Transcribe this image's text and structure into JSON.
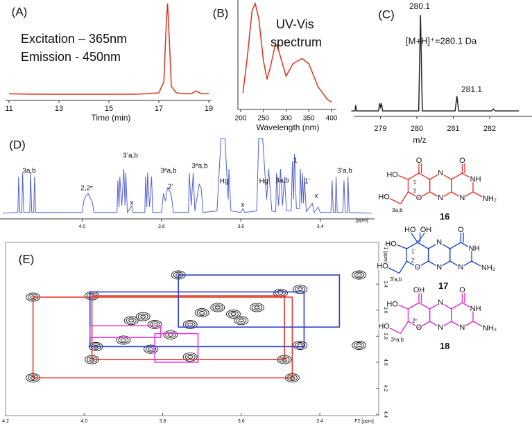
{
  "chart_data": [
    {
      "type": "line",
      "panel_label": "(A)",
      "annotations": [
        "Excitation – 365nm",
        "Emission  - 450nm"
      ],
      "xlabel": "Time (min)",
      "color": "#e0301e",
      "x": [
        11,
        12,
        13,
        14,
        15,
        16,
        16.5,
        17,
        17.2,
        17.3,
        17.35,
        17.42,
        17.5,
        17.7,
        18,
        18.3,
        18.5,
        18.7,
        19
      ],
      "values": [
        2,
        1.5,
        1.5,
        1.5,
        1.5,
        1.5,
        2,
        3,
        15,
        80,
        100,
        60,
        10,
        3,
        2,
        2,
        5,
        2,
        2
      ],
      "xlim": [
        11,
        19
      ],
      "ylim": [
        0,
        100
      ],
      "xticks": [
        11,
        13,
        15,
        17,
        19
      ]
    },
    {
      "type": "line",
      "panel_label": "(B)",
      "annotations": [
        "UV-Vis",
        "spectrum"
      ],
      "xlabel": "Wavelength (nm)",
      "color": "#e0301e",
      "x": [
        205,
        215,
        225,
        232,
        240,
        250,
        258,
        265,
        275,
        280,
        288,
        300,
        315,
        335,
        350,
        370,
        390,
        400
      ],
      "values": [
        14,
        50,
        93,
        100,
        85,
        45,
        27,
        38,
        58,
        60,
        48,
        30,
        42,
        47,
        42,
        20,
        8,
        5
      ],
      "xlim": [
        200,
        400
      ],
      "ylim": [
        0,
        100
      ],
      "xticks": [
        200,
        250,
        300,
        350,
        400
      ]
    },
    {
      "type": "line",
      "panel_label": "(C)",
      "annotations": [
        "[M+H]⁺=280.1 Da"
      ],
      "peak_labels": [
        "280.1",
        "281.1"
      ],
      "xlabel": "m/z",
      "color": "#222222",
      "x": [
        278.2,
        278.3,
        278.32,
        278.34,
        278.95,
        278.98,
        279.0,
        279.03,
        279.06,
        280.05,
        280.1,
        280.15,
        281.05,
        281.1,
        281.15,
        282.05,
        282.1,
        282.15,
        282.8
      ],
      "values": [
        2,
        2,
        8,
        2,
        2,
        10,
        6,
        9,
        2,
        2,
        100,
        2,
        2,
        17,
        2,
        2,
        4,
        2,
        2
      ],
      "xlim": [
        278.2,
        282.8
      ],
      "ylim": [
        0,
        100
      ],
      "xticks": [
        279,
        280,
        281,
        282
      ]
    },
    {
      "type": "line",
      "panel_label": "(D)",
      "xlabel": "[ppm]",
      "color": "#5060d0",
      "annotations": [
        "3a,b",
        "2,2ᵉ",
        "3’a,b",
        "x",
        "3ᵉa,b",
        "2’",
        "3ᵉa,b",
        "Hg",
        "x",
        "Hg",
        "3a,b",
        "1",
        "1’",
        "x",
        "3’a,b"
      ],
      "x": [
        4.2,
        4.162,
        4.16,
        4.157,
        4.152,
        4.15,
        4.147,
        4.132,
        4.13,
        4.127,
        4.122,
        4.12,
        4.117,
        4.0,
        3.995,
        3.99,
        3.985,
        3.98,
        3.975,
        3.97,
        3.912,
        3.91,
        3.907,
        3.905,
        3.9,
        3.895,
        3.892,
        3.89,
        3.886,
        3.875,
        3.872,
        3.842,
        3.84,
        3.837,
        3.835,
        3.83,
        3.825,
        3.822,
        3.8,
        3.795,
        3.79,
        3.785,
        3.78,
        3.775,
        3.77,
        3.732,
        3.73,
        3.725,
        3.72,
        3.716,
        3.705,
        3.7,
        3.695,
        3.66,
        3.65,
        3.64,
        3.632,
        3.63,
        3.625,
        3.6,
        3.595,
        3.59,
        3.56,
        3.555,
        3.545,
        3.535,
        3.53,
        3.522,
        3.512,
        3.51,
        3.505,
        3.5,
        3.495,
        3.49,
        3.485,
        3.473,
        3.47,
        3.467,
        3.465,
        3.46,
        3.452,
        3.45,
        3.447,
        3.445,
        3.442,
        3.44,
        3.435,
        3.42,
        3.415,
        3.405,
        3.4,
        3.373,
        3.37,
        3.367,
        3.362,
        3.36,
        3.357,
        3.343,
        3.34,
        3.337,
        3.332,
        3.33,
        3.327,
        3.27
      ],
      "values": [
        2,
        3,
        50,
        3,
        3,
        55,
        3,
        3,
        55,
        3,
        3,
        50,
        3,
        3,
        20,
        25,
        28,
        22,
        18,
        3,
        3,
        45,
        10,
        50,
        12,
        60,
        12,
        55,
        3,
        12,
        3,
        3,
        50,
        10,
        55,
        10,
        50,
        3,
        3,
        28,
        18,
        35,
        32,
        25,
        3,
        3,
        55,
        12,
        55,
        5,
        40,
        35,
        3,
        5,
        100,
        100,
        20,
        60,
        5,
        3,
        8,
        3,
        5,
        100,
        100,
        20,
        60,
        5,
        4,
        55,
        12,
        60,
        12,
        50,
        5,
        5,
        70,
        20,
        80,
        8,
        8,
        60,
        15,
        55,
        15,
        50,
        4,
        15,
        3,
        10,
        3,
        3,
        45,
        3,
        3,
        50,
        3,
        3,
        45,
        3,
        3,
        50,
        3,
        2
      ],
      "xlim": [
        4.2,
        3.27
      ],
      "ylim": [
        0,
        100
      ],
      "xticks": [
        {
          "value": 4,
          "label": "4.0"
        },
        3.8,
        3.6,
        3.4
      ]
    },
    {
      "type": "contour",
      "panel_label": "(E)",
      "xlabel": "F2 [ppm]",
      "ylabel": "F1 [ppm]",
      "color": "#111111",
      "x": [
        4.13,
        4.13,
        3.98,
        3.98,
        3.97,
        3.9,
        3.88,
        3.83,
        3.82,
        3.78,
        3.76,
        3.73,
        3.73,
        3.66,
        3.62,
        3.56,
        3.6,
        3.5,
        3.49,
        3.47,
        3.45,
        3.45,
        3.3,
        3.3,
        3.85,
        3.7
      ],
      "values": [
        3.5,
        4.12,
        3.49,
        3.98,
        3.88,
        3.83,
        3.68,
        3.9,
        3.71,
        3.79,
        3.33,
        3.71,
        3.96,
        3.58,
        3.63,
        3.58,
        3.68,
        3.47,
        3.98,
        4.12,
        3.44,
        3.87,
        3.33,
        3.87,
        3.65,
        3.62
      ],
      "rectangles": [
        {
          "color": "#e03a2a",
          "x": [
            4.13,
            3.47
          ],
          "y": [
            3.5,
            4.12
          ]
        },
        {
          "color": "#e03a2a",
          "x": [
            3.98,
            3.49
          ],
          "y": [
            3.49,
            3.98
          ]
        },
        {
          "color": "#2a3fd0",
          "x": [
            3.76,
            3.35
          ],
          "y": [
            3.33,
            3.73
          ]
        },
        {
          "color": "#2a3fd0",
          "x": [
            3.985,
            3.44
          ],
          "y": [
            3.46,
            3.88
          ]
        },
        {
          "color": "#e040e0",
          "x": [
            3.985,
            3.805
          ],
          "y": [
            3.72,
            3.81
          ]
        },
        {
          "color": "#e040e0",
          "x": [
            3.82,
            3.71
          ],
          "y": [
            3.78,
            4.0
          ]
        }
      ],
      "xlim": [
        4.2,
        3.25
      ],
      "ylim": [
        3.08,
        4.41
      ],
      "xticks": [
        4.2,
        {
          "value": 4,
          "label": "4.0"
        },
        3.8,
        3.6,
        3.4
      ],
      "yticks": [
        3.4,
        3.6,
        3.8,
        {
          "value": 4,
          "label": "4.0"
        },
        4.2,
        4.4
      ]
    }
  ],
  "structures": [
    {
      "number": "16",
      "color": "#e8281e",
      "atoms": [
        "HO",
        "1",
        "O",
        "O",
        "N",
        "NH",
        "2",
        "O",
        "N",
        "N",
        "NH₂",
        "HO",
        "3a,b"
      ]
    },
    {
      "number": "17",
      "color": "#1a3fc8",
      "atoms": [
        "HO",
        "HO",
        "OH",
        "1’",
        "O",
        "N",
        "NH",
        "2’",
        "O",
        "N",
        "N",
        "NH₂",
        "HO",
        "3’a,b"
      ]
    },
    {
      "number": "18",
      "color": "#e020d0",
      "atoms": [
        "OH",
        "HO",
        "O",
        "N",
        "NH",
        "2ᵉ",
        "O",
        "N",
        "N",
        "NH₂",
        "HO",
        "3ᵉa,b"
      ]
    }
  ]
}
